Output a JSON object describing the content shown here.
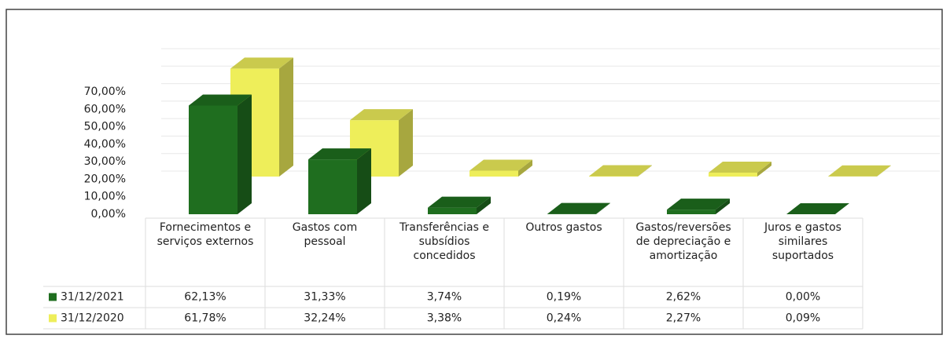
{
  "chart_data": {
    "type": "bar3d",
    "categories": [
      "Fornecimentos e serviços externos",
      "Gastos com pessoal",
      "Transferências e subsídios concedidos",
      "Outros gastos",
      "Gastos/reversões de depreciação e amortização",
      "Juros e gastos similares suportados"
    ],
    "series": [
      {
        "name": "31/12/2021",
        "color": "#1f6e1f",
        "values": [
          62.13,
          31.33,
          3.74,
          0.19,
          2.62,
          0.0
        ],
        "value_labels": [
          "62,13%",
          "31,33%",
          "3,74%",
          "0,19%",
          "2,62%",
          "0,00%"
        ]
      },
      {
        "name": "31/12/2020",
        "color": "#eeee5a",
        "values": [
          61.78,
          32.24,
          3.38,
          0.24,
          2.27,
          0.09
        ],
        "value_labels": [
          "61,78%",
          "32,24%",
          "3,38%",
          "0,24%",
          "2,27%",
          "0,09%"
        ]
      }
    ],
    "ylim": [
      0,
      70
    ],
    "yticks": [
      {
        "value": 0,
        "label": "0,00%"
      },
      {
        "value": 10,
        "label": "10,00%"
      },
      {
        "value": 20,
        "label": "20,00%"
      },
      {
        "value": 30,
        "label": "30,00%"
      },
      {
        "value": 40,
        "label": "40,00%"
      },
      {
        "value": 50,
        "label": "50,00%"
      },
      {
        "value": 60,
        "label": "60,00%"
      },
      {
        "value": 70,
        "label": "70,00%"
      }
    ],
    "grid": true
  }
}
